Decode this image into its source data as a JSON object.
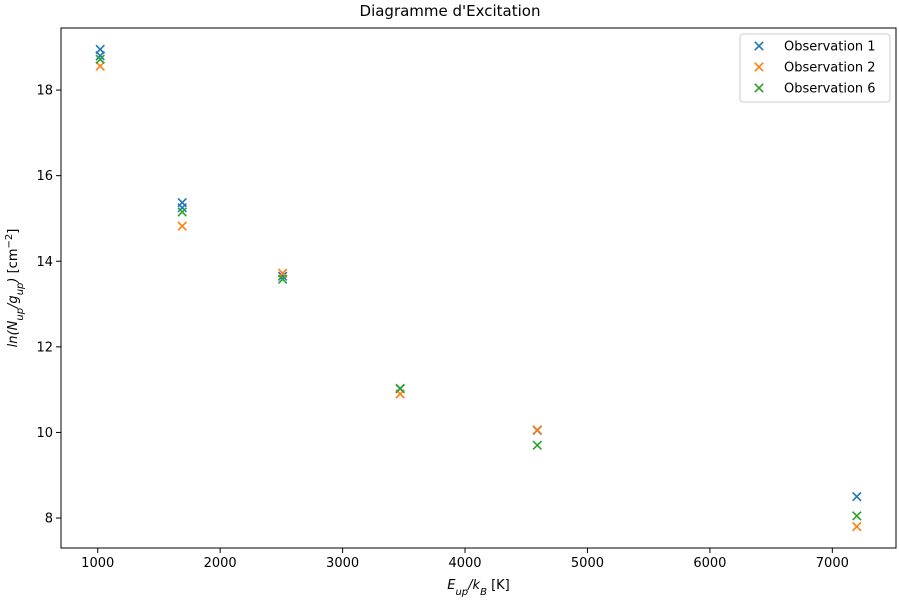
{
  "chart_data": {
    "type": "scatter",
    "title": "Diagramme d'Excitation",
    "xlabel": {
      "parts": [
        {
          "t": "E",
          "italic": true
        },
        {
          "t": "up",
          "italic": true,
          "sub": true
        },
        {
          "t": "/",
          "italic": true
        },
        {
          "t": "k",
          "italic": true
        },
        {
          "t": "B",
          "italic": true,
          "sub": true
        },
        {
          "t": " [K]"
        }
      ]
    },
    "ylabel": {
      "parts": [
        {
          "t": "ln",
          "italic": true
        },
        {
          "t": "(",
          "italic": true
        },
        {
          "t": "N",
          "italic": true
        },
        {
          "t": "up",
          "italic": true,
          "sub": true
        },
        {
          "t": "/",
          "italic": true
        },
        {
          "t": "g",
          "italic": true
        },
        {
          "t": "up",
          "italic": true,
          "sub": true
        },
        {
          "t": ")",
          "italic": true
        },
        {
          "t": " [cm"
        },
        {
          "t": "−2",
          "sup": true
        },
        {
          "t": "]"
        }
      ]
    },
    "xlim": [
      700,
      7520
    ],
    "ylim": [
      7.3,
      19.45
    ],
    "xticks": [
      1000,
      2000,
      3000,
      4000,
      5000,
      6000,
      7000
    ],
    "yticks": [
      8,
      10,
      12,
      14,
      16,
      18
    ],
    "grid": false,
    "legend_position": "top-right",
    "marker": "x",
    "series": [
      {
        "name": "Observation 1",
        "color": "#1f77b4",
        "points": [
          {
            "x": 1020,
            "y": 18.95
          },
          {
            "x": 1020,
            "y": 18.8
          },
          {
            "x": 1690,
            "y": 15.37
          },
          {
            "x": 1690,
            "y": 15.25
          },
          {
            "x": 2510,
            "y": 13.65
          },
          {
            "x": 3470,
            "y": 11.02
          },
          {
            "x": 4590,
            "y": 10.05
          },
          {
            "x": 7200,
            "y": 8.5
          }
        ]
      },
      {
        "name": "Observation 2",
        "color": "#ff7f0e",
        "points": [
          {
            "x": 1020,
            "y": 18.56
          },
          {
            "x": 1690,
            "y": 14.82
          },
          {
            "x": 2510,
            "y": 13.72
          },
          {
            "x": 3470,
            "y": 10.9
          },
          {
            "x": 4590,
            "y": 10.06
          },
          {
            "x": 7200,
            "y": 7.8
          }
        ]
      },
      {
        "name": "Observation 6",
        "color": "#2ca02c",
        "points": [
          {
            "x": 1020,
            "y": 18.72
          },
          {
            "x": 1690,
            "y": 15.15
          },
          {
            "x": 2510,
            "y": 13.58
          },
          {
            "x": 3470,
            "y": 11.03
          },
          {
            "x": 4590,
            "y": 9.7
          },
          {
            "x": 7200,
            "y": 8.05
          }
        ]
      }
    ]
  }
}
